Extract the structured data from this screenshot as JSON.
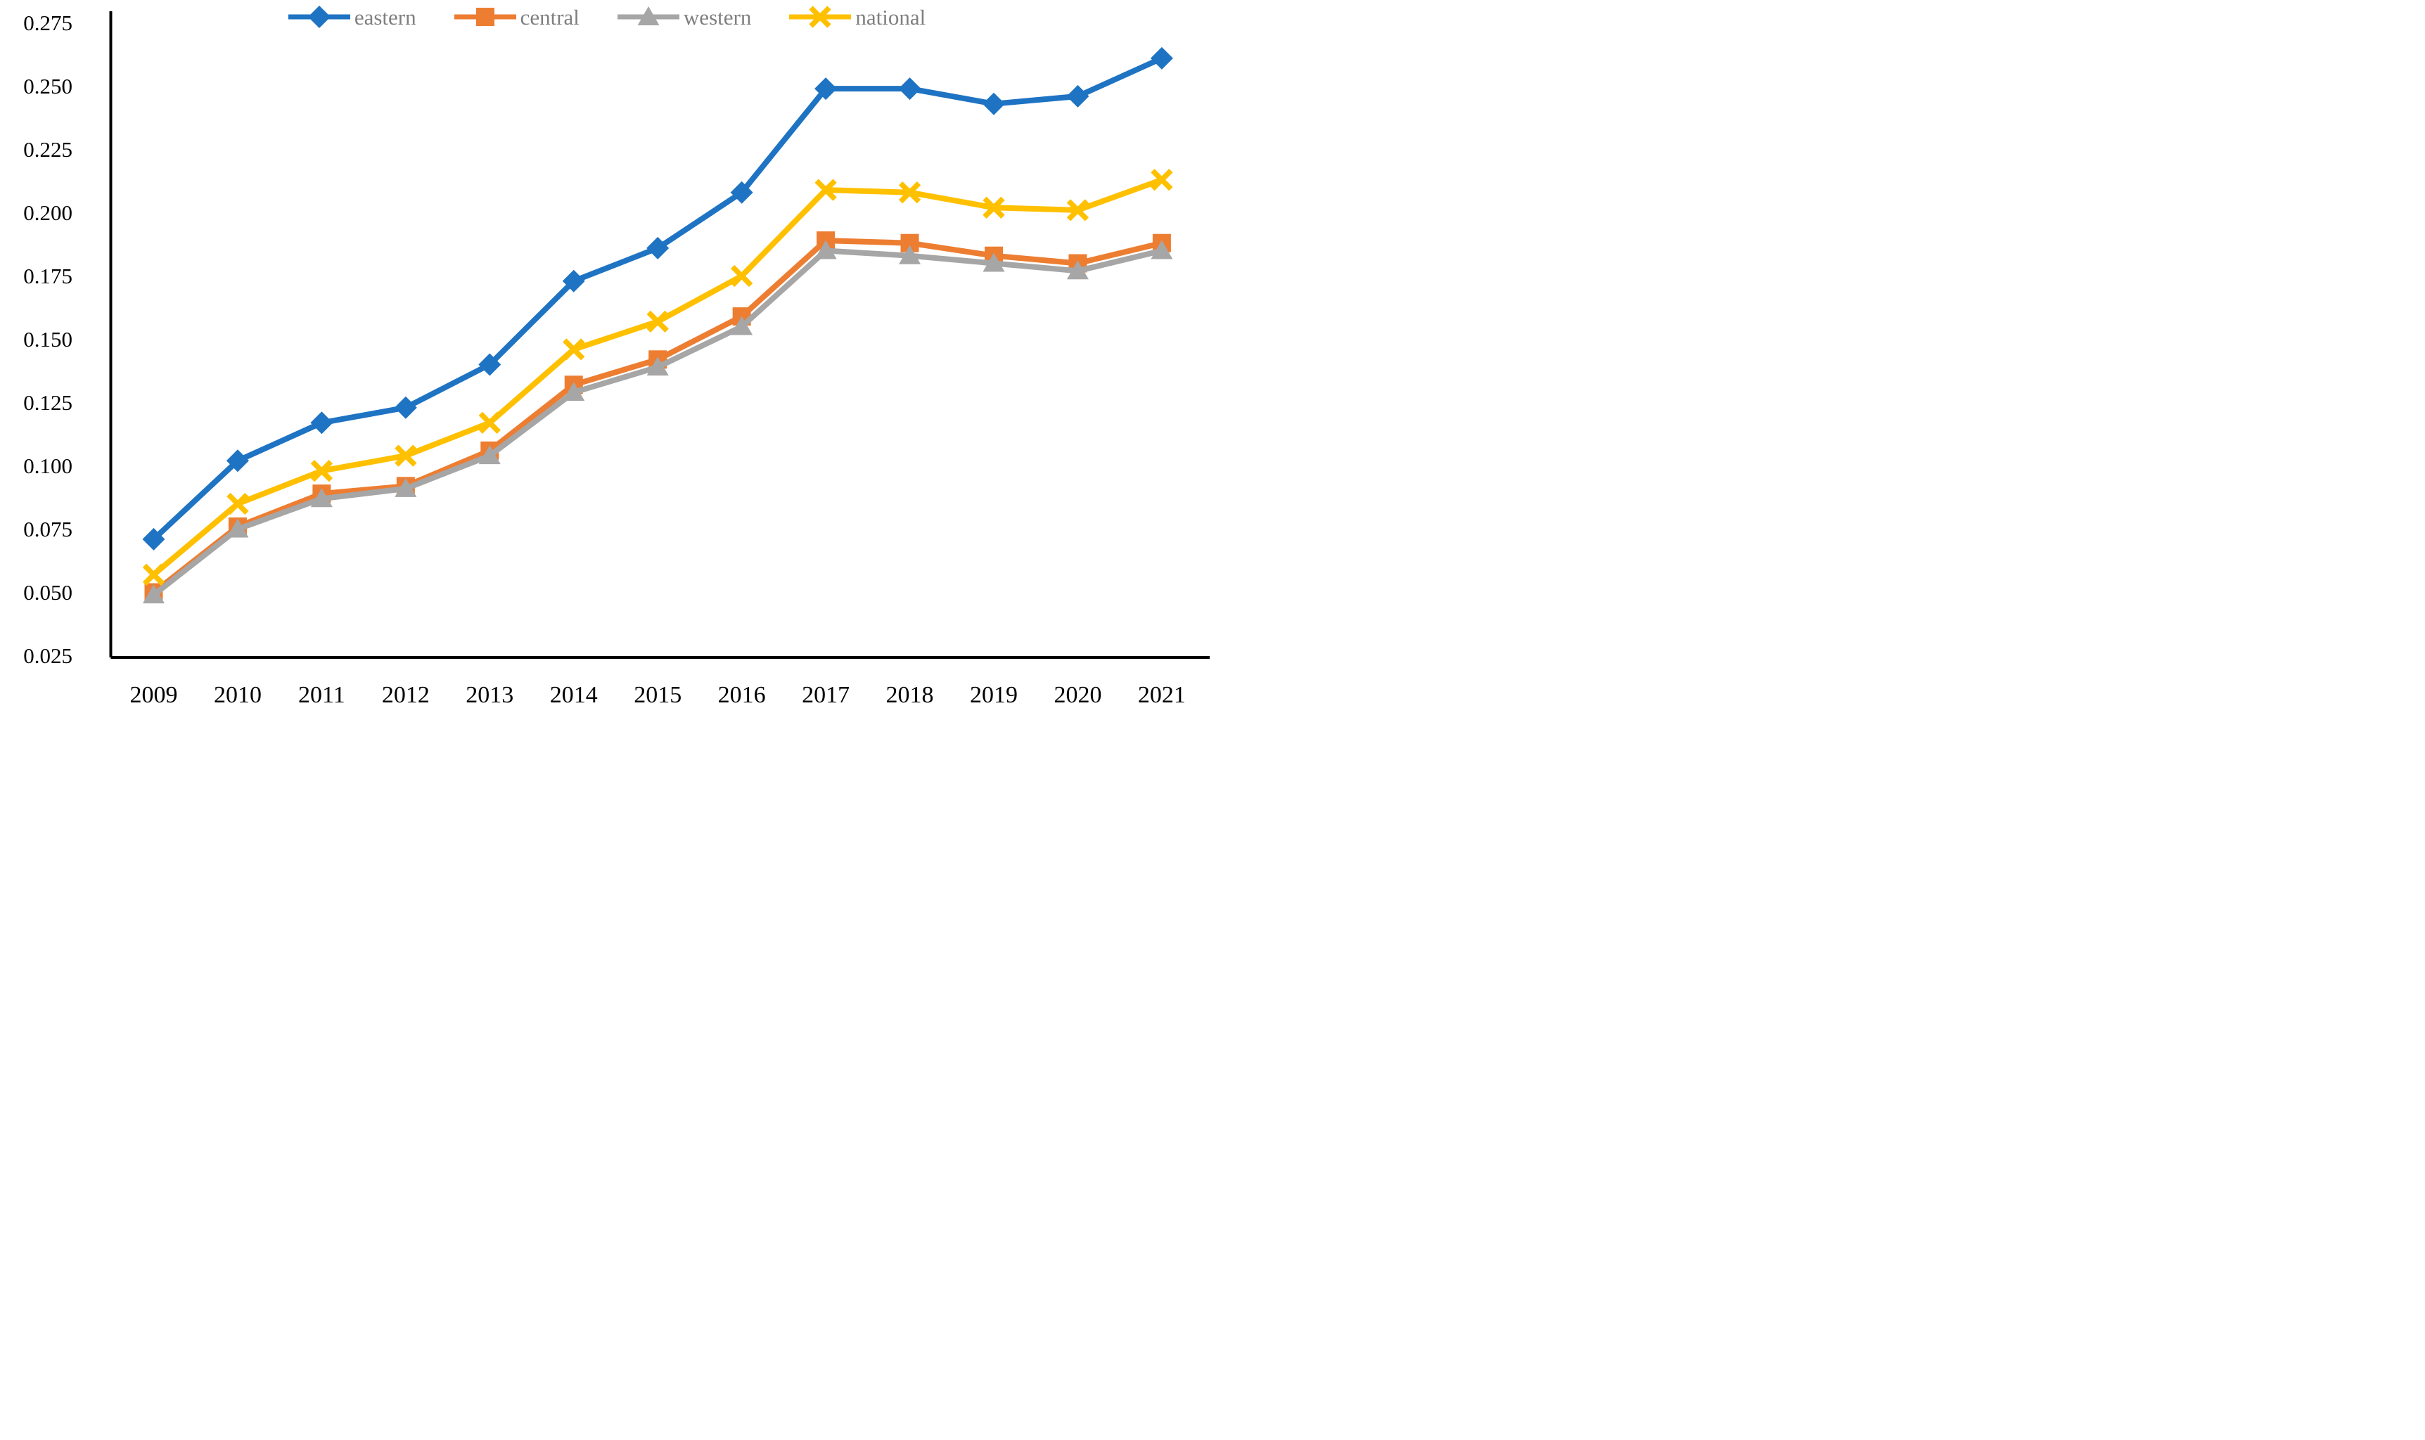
{
  "figure": {
    "background": "#ffffff",
    "axis_color": "#000000",
    "tick_label_color": "#000000",
    "legend_text_color": "#7f7f7f"
  },
  "chart_data": {
    "type": "line",
    "title": "",
    "xlabel": "",
    "ylabel": "",
    "grid": false,
    "legend_position": "top",
    "categories": [
      "2009",
      "2010",
      "2011",
      "2012",
      "2013",
      "2014",
      "2015",
      "2016",
      "2017",
      "2018",
      "2019",
      "2020",
      "2021"
    ],
    "ylim": [
      0.025,
      0.275
    ],
    "ytick_step": 0.025,
    "ytick_labels": [
      "0.275",
      "0.250",
      "0.225",
      "0.200",
      "0.175",
      "0.150",
      "0.125",
      "0.100",
      "0.075",
      "0.050",
      "0.025"
    ],
    "series": [
      {
        "name": "central",
        "color": "#ED7D31",
        "marker": "square",
        "values": [
          0.05,
          0.076,
          0.089,
          0.092,
          0.106,
          0.132,
          0.142,
          0.159,
          0.189,
          0.188,
          0.183,
          0.18,
          0.188
        ]
      },
      {
        "name": "western",
        "color": "#A6A6A6",
        "marker": "triangle",
        "values": [
          0.049,
          0.075,
          0.087,
          0.091,
          0.104,
          0.129,
          0.139,
          0.155,
          0.185,
          0.183,
          0.18,
          0.177,
          0.185
        ]
      },
      {
        "name": "national",
        "color": "#FFC000",
        "marker": "x",
        "values": [
          0.057,
          0.085,
          0.098,
          0.104,
          0.117,
          0.146,
          0.157,
          0.175,
          0.209,
          0.208,
          0.202,
          0.201,
          0.213
        ]
      },
      {
        "name": "eastern",
        "color": "#1E73C3",
        "marker": "diamond",
        "values": [
          0.071,
          0.102,
          0.117,
          0.123,
          0.14,
          0.173,
          0.186,
          0.208,
          0.249,
          0.249,
          0.243,
          0.246,
          0.261
        ]
      }
    ],
    "legend_order": [
      "eastern",
      "central",
      "western",
      "national"
    ]
  }
}
